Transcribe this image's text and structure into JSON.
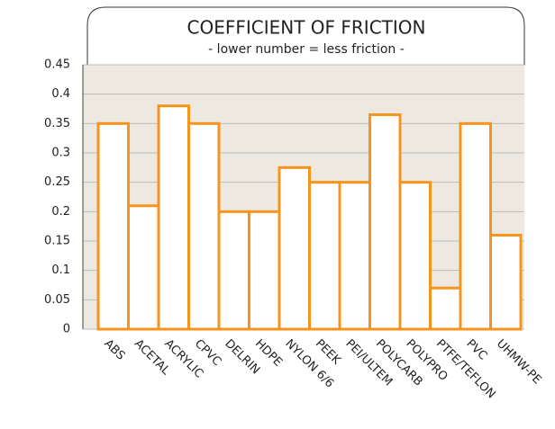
{
  "chart_data": {
    "type": "bar",
    "title": "COEFFICIENT OF FRICTION",
    "subtitle": "- lower number = less friction -",
    "categories": [
      "ABS",
      "ACETAL",
      "ACRYLIC",
      "CPVC",
      "DELRIN",
      "HDPE",
      "NYLON 6/6",
      "PEEK",
      "PEI/ULTEM",
      "POLYCARB",
      "POLYPRO",
      "PTFE/TEFLON",
      "PVC",
      "UHMW-PE"
    ],
    "values": [
      0.35,
      0.21,
      0.38,
      0.35,
      0.2,
      0.2,
      0.275,
      0.25,
      0.25,
      0.365,
      0.25,
      0.07,
      0.35,
      0.16
    ],
    "color": "#f7941d",
    "ylim": [
      0,
      0.45
    ],
    "yticks": [
      0,
      0.05,
      0.1,
      0.15,
      0.2,
      0.25,
      0.3,
      0.35,
      0.4,
      0.45
    ],
    "grid": true
  }
}
